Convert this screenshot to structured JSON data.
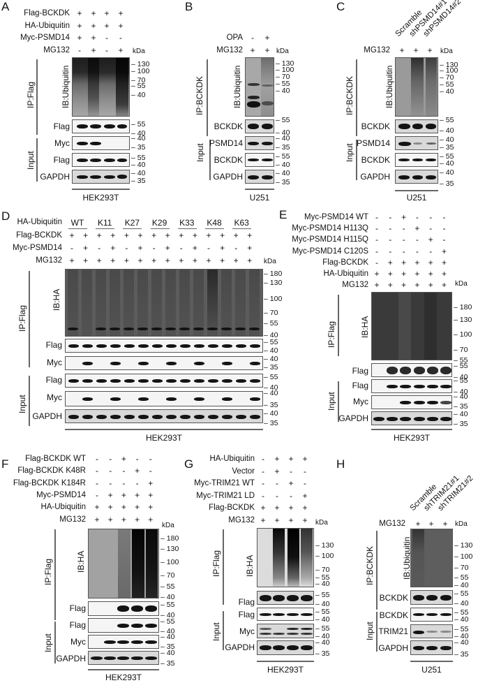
{
  "panels": {
    "A": {
      "letter": "A",
      "conditions": [
        {
          "label": "Flag-BCKDK",
          "signs": [
            "+",
            "+",
            "+",
            "+"
          ]
        },
        {
          "label": "HA-Ubiquitin",
          "signs": [
            "+",
            "+",
            "+",
            "+"
          ]
        },
        {
          "label": "Myc-PSMD14",
          "signs": [
            "+",
            "+",
            "-",
            "-"
          ]
        },
        {
          "label": "MG132",
          "signs": [
            "-",
            "+",
            "-",
            "+"
          ]
        }
      ],
      "kda": "kDa",
      "ip_label": "IP:Flag",
      "input_label": "Input",
      "ib_label": "IB:Ubiquitin",
      "blots": [
        {
          "label": "",
          "markers": [
            "130",
            "100",
            "70",
            "55",
            "40"
          ]
        },
        {
          "label": "Flag",
          "markers": [
            "55",
            "40"
          ]
        },
        {
          "label": "Myc",
          "markers": [
            "40",
            "35"
          ]
        },
        {
          "label": "Flag",
          "markers": [
            "55",
            "40"
          ]
        },
        {
          "label": "GAPDH",
          "markers": [
            "40",
            "35"
          ]
        }
      ],
      "cell_line": "HEK293T"
    },
    "B": {
      "letter": "B",
      "conditions": [
        {
          "label": "OPA",
          "signs": [
            "-",
            "+"
          ]
        },
        {
          "label": "MG132",
          "signs": [
            "+",
            "+"
          ]
        }
      ],
      "kda": "kDa",
      "ip_label": "IP:BCKDK",
      "input_label": "Input",
      "ib_label": "IB:Ubiquitin",
      "blots": [
        {
          "label": "",
          "markers": [
            "130",
            "100",
            "70",
            "55",
            "40"
          ]
        },
        {
          "label": "BCKDK",
          "markers": [
            "55",
            "40"
          ]
        },
        {
          "label": "PSMD14",
          "markers": [
            "40",
            "35"
          ]
        },
        {
          "label": "BCKDK",
          "markers": [
            "55",
            "40"
          ]
        },
        {
          "label": "GAPDH",
          "markers": [
            "40",
            "35"
          ]
        }
      ],
      "cell_line": "U251"
    },
    "C": {
      "letter": "C",
      "lane_headers": [
        "Scramble",
        "shPSMD14#1",
        "shPSMD14#2"
      ],
      "conditions": [
        {
          "label": "MG132",
          "signs": [
            "+",
            "+",
            "+"
          ]
        }
      ],
      "kda": "kDa",
      "ip_label": "IP:BCKDK",
      "input_label": "Input",
      "ib_label": "IB:Ubiquitin",
      "blots": [
        {
          "label": "",
          "markers": [
            "130",
            "100",
            "70",
            "55",
            "40"
          ]
        },
        {
          "label": "BCKDK",
          "markers": [
            "55",
            "40"
          ]
        },
        {
          "label": "PSMD14",
          "markers": [
            "40",
            "35"
          ]
        },
        {
          "label": "BCKDK",
          "markers": [
            "55",
            "40"
          ]
        },
        {
          "label": "GAPDH",
          "markers": [
            "40",
            "35"
          ]
        }
      ],
      "cell_line": "U251"
    },
    "D": {
      "letter": "D",
      "group_row_label": "HA-Ubiquitin",
      "groups": [
        "WT",
        "K11",
        "K27",
        "K29",
        "K33",
        "K48",
        "K63"
      ],
      "conditions": [
        {
          "label": "Flag-BCKDK",
          "signs": [
            "+",
            "+",
            "+",
            "+",
            "+",
            "+",
            "+",
            "+",
            "+",
            "+",
            "+",
            "+",
            "+",
            "+"
          ]
        },
        {
          "label": "Myc-PSMD14",
          "signs": [
            "-",
            "+",
            "-",
            "+",
            "-",
            "+",
            "-",
            "+",
            "-",
            "+",
            "-",
            "+",
            "-",
            "+"
          ]
        },
        {
          "label": "MG132",
          "signs": [
            "+",
            "+",
            "+",
            "+",
            "+",
            "+",
            "+",
            "+",
            "+",
            "+",
            "+",
            "+",
            "+",
            "+"
          ]
        }
      ],
      "kda": "kDa",
      "ip_label": "IP:Flag",
      "input_label": "Input",
      "ib_label": "IB:HA",
      "blots": [
        {
          "label": "",
          "markers": [
            "180",
            "130",
            "100",
            "70",
            "55",
            "40"
          ]
        },
        {
          "label": "Flag",
          "markers": [
            "55",
            "40"
          ]
        },
        {
          "label": "Myc",
          "markers": [
            "40",
            "35"
          ]
        },
        {
          "label": "Flag",
          "markers": [
            "55",
            "40"
          ]
        },
        {
          "label": "Myc",
          "markers": [
            "40",
            "35"
          ]
        },
        {
          "label": "GAPDH",
          "markers": [
            "40",
            "35"
          ]
        }
      ],
      "cell_line": "HEK293T"
    },
    "E": {
      "letter": "E",
      "conditions": [
        {
          "label": "Myc-PSMD14 WT",
          "signs": [
            "-",
            "-",
            "+",
            "-",
            "-",
            "-"
          ]
        },
        {
          "label": "Myc-PSMD14 H113Q",
          "signs": [
            "-",
            "-",
            "-",
            "+",
            "-",
            "-"
          ]
        },
        {
          "label": "Myc-PSMD14 H115Q",
          "signs": [
            "-",
            "-",
            "-",
            "-",
            "+",
            "-"
          ]
        },
        {
          "label": "Myc-PSMD14 C120S",
          "signs": [
            "-",
            "-",
            "-",
            "-",
            "-",
            "+"
          ]
        },
        {
          "label": "Flag-BCKDK",
          "signs": [
            "-",
            "+",
            "+",
            "+",
            "+",
            "+"
          ]
        },
        {
          "label": "HA-Ubiquitin",
          "signs": [
            "+",
            "+",
            "+",
            "+",
            "+",
            "+"
          ]
        },
        {
          "label": "MG132",
          "signs": [
            "+",
            "+",
            "+",
            "+",
            "+",
            "+"
          ]
        }
      ],
      "kda": "kDa",
      "ip_label": "IP:Flag",
      "input_label": "Input",
      "ib_label": "IB:HA",
      "blots": [
        {
          "label": "",
          "markers": [
            "180",
            "130",
            "100",
            "70",
            "55"
          ]
        },
        {
          "label": "Flag",
          "markers": [
            "55",
            "40"
          ]
        },
        {
          "label": "Flag",
          "markers": [
            "55",
            "40"
          ]
        },
        {
          "label": "Myc",
          "markers": [
            "40",
            "35"
          ]
        },
        {
          "label": "GAPDH",
          "markers": [
            "40",
            "35"
          ]
        }
      ],
      "cell_line": "HEK293T"
    },
    "F": {
      "letter": "F",
      "conditions": [
        {
          "label": "Flag-BCKDK WT",
          "signs": [
            "-",
            "-",
            "+",
            "-",
            "-"
          ]
        },
        {
          "label": "Flag-BCKDK K48R",
          "signs": [
            "-",
            "-",
            "-",
            "+",
            "-"
          ]
        },
        {
          "label": "Flag-BCKDK K184R",
          "signs": [
            "-",
            "-",
            "-",
            "-",
            "+"
          ]
        },
        {
          "label": "Myc-PSMD14",
          "signs": [
            "-",
            "+",
            "+",
            "+",
            "+"
          ]
        },
        {
          "label": "HA-Ubiquitin",
          "signs": [
            "+",
            "+",
            "+",
            "+",
            "+"
          ]
        },
        {
          "label": "MG132",
          "signs": [
            "+",
            "+",
            "+",
            "+",
            "+"
          ]
        }
      ],
      "kda": "kDa",
      "ip_label": "IP:Flag",
      "input_label": "Input",
      "ib_label": "IB:HA",
      "blots": [
        {
          "label": "",
          "markers": [
            "180",
            "130",
            "100",
            "70",
            "55",
            "40"
          ]
        },
        {
          "label": "Flag",
          "markers": [
            "55",
            "40"
          ]
        },
        {
          "label": "Flag",
          "markers": [
            "55",
            "40"
          ]
        },
        {
          "label": "Myc",
          "markers": [
            "40",
            "35"
          ]
        },
        {
          "label": "GAPDH",
          "markers": [
            "40",
            "35"
          ]
        }
      ],
      "cell_line": "HEK293T"
    },
    "G": {
      "letter": "G",
      "conditions": [
        {
          "label": "HA-Ubiquitin",
          "signs": [
            "-",
            "+",
            "+",
            "+"
          ]
        },
        {
          "label": "Vector",
          "signs": [
            "-",
            "+",
            "-",
            "-"
          ]
        },
        {
          "label": "Myc-TRIM21 WT",
          "signs": [
            "-",
            "-",
            "+",
            "-"
          ]
        },
        {
          "label": "Myc-TRIM21 LD",
          "signs": [
            "-",
            "-",
            "-",
            "+"
          ]
        },
        {
          "label": "Flag-BCKDK",
          "signs": [
            "+",
            "+",
            "+",
            "+"
          ]
        },
        {
          "label": "MG132",
          "signs": [
            "+",
            "+",
            "+",
            "+"
          ]
        }
      ],
      "kda": "kDa",
      "ip_label": "IP:Flag",
      "input_label": "Input",
      "ib_label": "IB:HA",
      "blots": [
        {
          "label": "",
          "markers": [
            "130",
            "100",
            "70",
            "55",
            "40"
          ]
        },
        {
          "label": "Flag",
          "markers": [
            "55",
            "40"
          ]
        },
        {
          "label": "Flag",
          "markers": [
            "55",
            "40"
          ]
        },
        {
          "label": "Myc",
          "markers": [
            "55",
            "40"
          ]
        },
        {
          "label": "GAPDH",
          "markers": [
            "40",
            "35"
          ]
        }
      ],
      "cell_line": "HEK293T"
    },
    "H": {
      "letter": "H",
      "lane_headers": [
        "Scramble",
        "shTRIM21#1",
        "shTRIM21#2"
      ],
      "conditions": [
        {
          "label": "MG132",
          "signs": [
            "+",
            "+",
            "+"
          ]
        }
      ],
      "kda": "kDa",
      "ip_label": "IP:BCKDK",
      "input_label": "Input",
      "ib_label": "IB:Ubiquitin",
      "blots": [
        {
          "label": "",
          "markers": [
            "130",
            "100",
            "70",
            "55",
            "40"
          ]
        },
        {
          "label": "BCKDK",
          "markers": [
            "55",
            "40"
          ]
        },
        {
          "label": "BCKDK",
          "markers": [
            "55",
            "40"
          ]
        },
        {
          "label": "TRIM21",
          "markers": [
            "55",
            "40"
          ]
        },
        {
          "label": "GAPDH",
          "markers": [
            "40",
            "35"
          ]
        }
      ],
      "cell_line": "U251"
    }
  }
}
